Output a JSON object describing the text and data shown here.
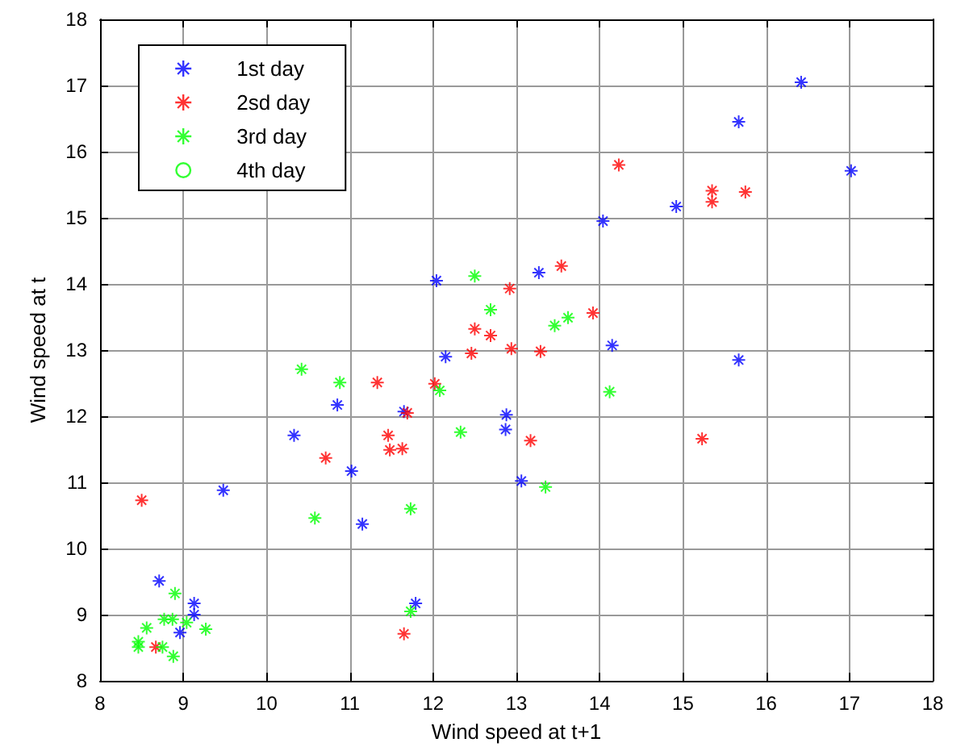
{
  "chart_data": {
    "type": "scatter",
    "xlabel": "Wind speed at t+1",
    "ylabel": "Wind speed at t",
    "xlim": [
      8,
      18
    ],
    "xticks": [
      8,
      9,
      10,
      11,
      12,
      13,
      14,
      15,
      16,
      17,
      18
    ],
    "ylim": [
      8,
      18
    ],
    "yticks": [
      8,
      9,
      10,
      11,
      12,
      13,
      14,
      15,
      16,
      17,
      18
    ],
    "grid": true,
    "legend": "top left",
    "series": [
      {
        "name": "1st day",
        "color": "#0000ff",
        "marker": "cross",
        "x": [
          9.48,
          8.71,
          9.13,
          9.13,
          8.96,
          11.15,
          11.02,
          11.79,
          10.33,
          10.85,
          11.65,
          12.04,
          12.15,
          12.88,
          12.87,
          13.06,
          13.27,
          14.04,
          14.15,
          14.92,
          15.67,
          15.67,
          16.42,
          17.02
        ],
        "values": [
          10.88,
          9.51,
          9.17,
          9.0,
          8.73,
          10.37,
          11.17,
          9.17,
          11.71,
          12.17,
          12.07,
          14.05,
          12.9,
          12.02,
          11.8,
          11.02,
          14.17,
          14.95,
          13.07,
          15.17,
          16.45,
          12.85,
          17.05,
          15.71
        ]
      },
      {
        "name": "2sd day",
        "color": "#ff0000",
        "marker": "cross",
        "x": [
          8.5,
          8.67,
          11.65,
          10.71,
          11.46,
          11.48,
          11.63,
          11.69,
          11.33,
          12.02,
          12.46,
          12.5,
          12.69,
          12.94,
          12.92,
          13.29,
          13.17,
          13.54,
          13.92,
          14.23,
          15.35,
          15.35,
          15.75,
          15.23
        ],
        "values": [
          10.73,
          8.51,
          8.71,
          11.37,
          11.71,
          11.49,
          11.51,
          12.05,
          12.51,
          12.49,
          12.95,
          13.32,
          13.22,
          13.02,
          13.93,
          12.98,
          11.63,
          14.27,
          13.56,
          15.8,
          15.41,
          15.24,
          15.39,
          11.66
        ]
      },
      {
        "name": "3rd day",
        "color": "#00ff00",
        "marker": "cross",
        "x": [
          8.46,
          8.46,
          8.56,
          8.75,
          8.77,
          8.87,
          8.88,
          8.9,
          9.04,
          9.27,
          10.58,
          11.73,
          11.73,
          10.42,
          10.88,
          12.08,
          12.33,
          12.5,
          12.69,
          13.46,
          13.62,
          13.35,
          14.12
        ],
        "values": [
          8.59,
          8.51,
          8.8,
          8.51,
          8.93,
          8.93,
          8.37,
          9.32,
          8.88,
          8.78,
          10.46,
          10.6,
          9.05,
          12.71,
          12.51,
          12.39,
          11.76,
          14.12,
          13.61,
          13.37,
          13.49,
          10.93,
          12.37
        ]
      },
      {
        "name": "4th day",
        "color": "#00ff00",
        "marker": "circle"
      }
    ]
  }
}
